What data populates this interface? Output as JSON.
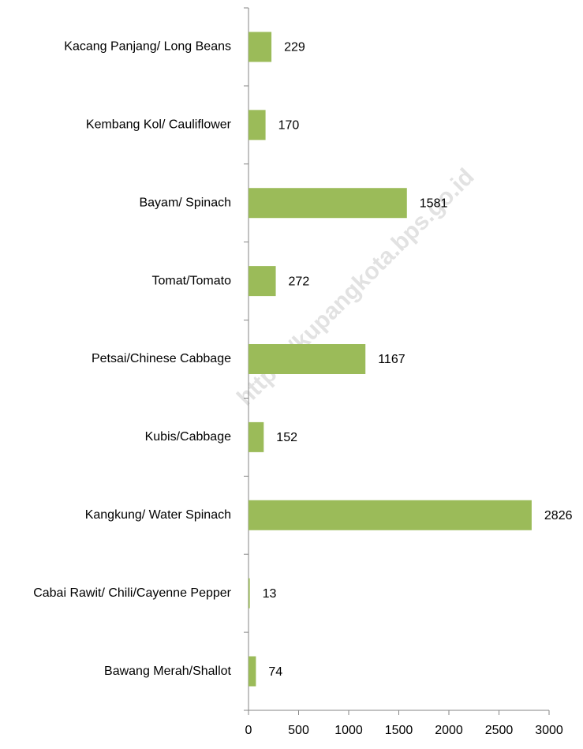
{
  "chart_data": {
    "type": "bar",
    "orientation": "horizontal",
    "categories": [
      "Kacang Panjang/ Long Beans",
      "Kembang Kol/ Cauliflower",
      "Bayam/ Spinach",
      "Tomat/Tomato",
      "Petsai/Chinese Cabbage",
      "Kubis/Cabbage",
      "Kangkung/ Water Spinach",
      "Cabai Rawit/ Chili/Cayenne Pepper",
      "Bawang Merah/Shallot"
    ],
    "values": [
      229,
      170,
      1581,
      272,
      1167,
      152,
      2826,
      13,
      74
    ],
    "color": "#9bbb59",
    "xlim": [
      0,
      3000
    ],
    "xticks": [
      0,
      500,
      1000,
      1500,
      2000,
      2500,
      3000
    ],
    "grid": false,
    "watermark": "https://kupangkota.bps.go.id"
  }
}
